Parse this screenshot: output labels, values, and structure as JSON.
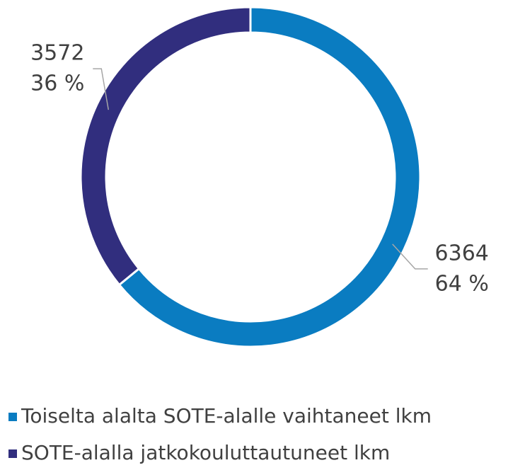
{
  "chart_data": {
    "type": "donut",
    "categories": [
      "Toiselta alalta SOTE-alalle vaihtaneet lkm",
      "SOTE-alalla jatkokouluttautuneet lkm"
    ],
    "values": [
      6364,
      3572
    ],
    "percent_labels": [
      "64 %",
      "36 %"
    ],
    "colors": [
      "#0a7cc1",
      "#312e7e"
    ],
    "legend": "bottom"
  }
}
